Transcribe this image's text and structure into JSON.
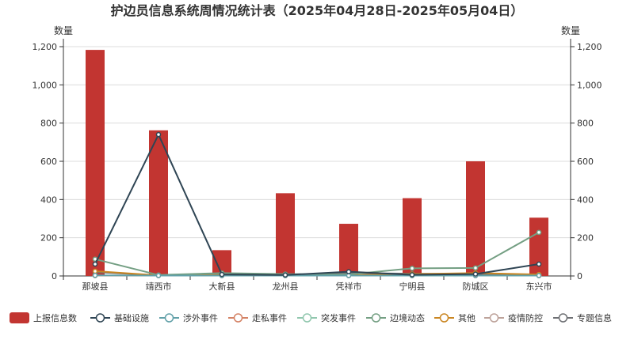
{
  "chart_data": {
    "type": "bar",
    "title": "护边员信息系统周情况统计表（2025年04月28日-2025年05月04日）",
    "ylabel_left": "数量",
    "ylabel_right": "数量",
    "ylim": [
      0,
      1200
    ],
    "yticks": [
      "0",
      "200",
      "400",
      "600",
      "800",
      "1,000",
      "1,200"
    ],
    "grid": true,
    "legend_position": "bottom",
    "categories": [
      "那坡县",
      "靖西市",
      "大新县",
      "龙州县",
      "凭祥市",
      "宁明县",
      "防城区",
      "东兴市"
    ],
    "series": [
      {
        "name": "上报信息数",
        "kind": "bar",
        "color": "#c23531",
        "values": [
          1183,
          762,
          135,
          433,
          273,
          407,
          600,
          305
        ]
      },
      {
        "name": "基础设施",
        "kind": "line",
        "color": "#2f4554",
        "values": [
          62,
          740,
          8,
          5,
          22,
          6,
          10,
          62
        ]
      },
      {
        "name": "涉外事件",
        "kind": "line",
        "color": "#61a0a8",
        "values": [
          3,
          2,
          2,
          2,
          2,
          2,
          2,
          2
        ]
      },
      {
        "name": "走私事件",
        "kind": "line",
        "color": "#d48265",
        "values": [
          2,
          2,
          2,
          2,
          2,
          2,
          2,
          2
        ]
      },
      {
        "name": "突发事件",
        "kind": "line",
        "color": "#91c7ae",
        "values": [
          2,
          2,
          2,
          2,
          2,
          2,
          2,
          2
        ]
      },
      {
        "name": "边境动态",
        "kind": "line",
        "color": "#749f83",
        "values": [
          88,
          5,
          15,
          10,
          8,
          40,
          42,
          228
        ]
      },
      {
        "name": "其他",
        "kind": "line",
        "color": "#ca8622",
        "values": [
          25,
          3,
          5,
          5,
          4,
          10,
          15,
          8
        ]
      },
      {
        "name": "疫情防控",
        "kind": "line",
        "color": "#bda29a",
        "values": [
          2,
          2,
          2,
          2,
          2,
          2,
          2,
          2
        ]
      },
      {
        "name": "专题信息",
        "kind": "line",
        "color": "#6e7074",
        "values": [
          20,
          3,
          10,
          5,
          15,
          12,
          10,
          2
        ]
      }
    ]
  }
}
